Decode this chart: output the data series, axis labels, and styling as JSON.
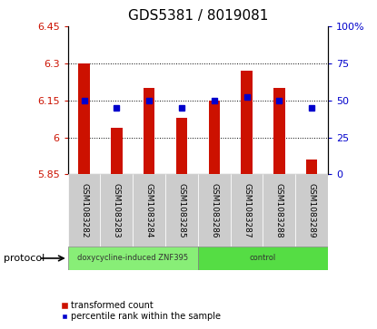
{
  "title": "GDS5381 / 8019081",
  "samples": [
    "GSM1083282",
    "GSM1083283",
    "GSM1083284",
    "GSM1083285",
    "GSM1083286",
    "GSM1083287",
    "GSM1083288",
    "GSM1083289"
  ],
  "bar_values": [
    6.3,
    6.04,
    6.2,
    6.08,
    6.15,
    6.27,
    6.2,
    5.91
  ],
  "percentile_values": [
    50,
    45,
    50,
    45,
    50,
    52,
    50,
    45
  ],
  "ylim_left": [
    5.85,
    6.45
  ],
  "yticks_left": [
    5.85,
    6.0,
    6.15,
    6.3,
    6.45
  ],
  "ytick_labels_left": [
    "5.85",
    "6",
    "6.15",
    "6.3",
    "6.45"
  ],
  "ylim_right": [
    0,
    100
  ],
  "yticks_right": [
    0,
    25,
    50,
    75,
    100
  ],
  "ytick_labels_right": [
    "0",
    "25",
    "50",
    "75",
    "100%"
  ],
  "bar_color": "#cc1100",
  "percentile_color": "#0000cc",
  "bar_bottom": 5.85,
  "groups": [
    {
      "label": "doxycycline-induced ZNF395",
      "start": 0,
      "end": 4,
      "color": "#88ee77"
    },
    {
      "label": "control",
      "start": 4,
      "end": 8,
      "color": "#55dd44"
    }
  ],
  "protocol_label": "protocol",
  "legend_items": [
    {
      "color": "#cc1100",
      "label": "transformed count"
    },
    {
      "color": "#0000cc",
      "label": "percentile rank within the sample"
    }
  ],
  "grid_yticks": [
    6.0,
    6.15,
    6.3
  ],
  "tick_color_left": "#cc1100",
  "tick_color_right": "#0000cc",
  "sample_box_color": "#cccccc",
  "title_fontsize": 11,
  "axis_fontsize": 8
}
